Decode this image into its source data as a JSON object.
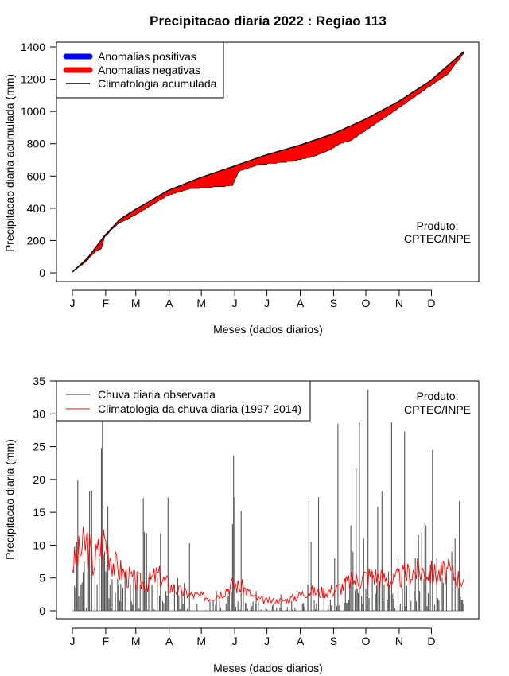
{
  "title": "Precipitacao diaria 2022 : Regiao 113",
  "colors": {
    "positive": "#0000ff",
    "negative": "#ff0000",
    "climatology": "#000000",
    "observed": "#555555",
    "clim_daily": "#ff0000"
  },
  "chart_data": [
    {
      "type": "area",
      "title": "Precipitacao diaria 2022 : Regiao 113",
      "xlabel": "Meses (dados diarios)",
      "ylabel": "Precipitacao diaria acumulada (mm)",
      "xlim": [
        1,
        365
      ],
      "ylim": [
        0,
        1400
      ],
      "yticks": [
        0,
        200,
        400,
        600,
        800,
        1000,
        1200,
        1400
      ],
      "month_ticks": [
        "J",
        "F",
        "M",
        "A",
        "M",
        "J",
        "J",
        "A",
        "S",
        "O",
        "N",
        "D"
      ],
      "legend": [
        "Anomalias positivas",
        "Anomalias negativas",
        "Climatologia acumulada"
      ],
      "annotation": [
        "Produto:",
        "CPTEC/INPE"
      ],
      "climatology_keypoints": [
        [
          1,
          5
        ],
        [
          15,
          90
        ],
        [
          31,
          230
        ],
        [
          45,
          330
        ],
        [
          59,
          390
        ],
        [
          90,
          510
        ],
        [
          120,
          590
        ],
        [
          151,
          660
        ],
        [
          181,
          730
        ],
        [
          212,
          790
        ],
        [
          243,
          860
        ],
        [
          273,
          950
        ],
        [
          304,
          1060
        ],
        [
          334,
          1190
        ],
        [
          365,
          1370
        ]
      ],
      "observed_keypoints": [
        [
          1,
          5
        ],
        [
          12,
          60
        ],
        [
          18,
          100
        ],
        [
          22,
          130
        ],
        [
          28,
          150
        ],
        [
          31,
          220
        ],
        [
          38,
          270
        ],
        [
          45,
          310
        ],
        [
          59,
          355
        ],
        [
          75,
          420
        ],
        [
          90,
          480
        ],
        [
          110,
          520
        ],
        [
          150,
          540
        ],
        [
          156,
          630
        ],
        [
          175,
          670
        ],
        [
          205,
          690
        ],
        [
          225,
          720
        ],
        [
          240,
          760
        ],
        [
          250,
          800
        ],
        [
          260,
          820
        ],
        [
          300,
          1000
        ],
        [
          330,
          1140
        ],
        [
          350,
          1230
        ],
        [
          365,
          1360
        ]
      ]
    },
    {
      "type": "bar",
      "xlabel": "Meses (dados diarios)",
      "ylabel": "Precipitacao diaria (mm)",
      "xlim": [
        1,
        365
      ],
      "ylim": [
        0,
        35
      ],
      "yticks": [
        0,
        5,
        10,
        15,
        20,
        25,
        30,
        35
      ],
      "month_ticks": [
        "J",
        "F",
        "M",
        "A",
        "M",
        "J",
        "J",
        "A",
        "S",
        "O",
        "N",
        "D"
      ],
      "legend": [
        "Chuva diaria observada",
        "Climatologia da chuva diaria (1997-2014)"
      ],
      "annotation": [
        "Produto:",
        "CPTEC/INPE"
      ],
      "observed_peaks": [
        [
          3,
          3.8
        ],
        [
          5,
          10.5
        ],
        [
          6,
          19.9
        ],
        [
          9,
          4
        ],
        [
          12,
          7.5
        ],
        [
          16,
          8
        ],
        [
          17,
          18.2
        ],
        [
          19,
          18.3
        ],
        [
          22,
          6
        ],
        [
          24,
          4
        ],
        [
          26,
          8
        ],
        [
          28,
          24.8
        ],
        [
          29,
          35
        ],
        [
          31,
          9
        ],
        [
          32,
          6
        ],
        [
          34,
          15.9
        ],
        [
          36,
          4
        ],
        [
          44,
          4
        ],
        [
          48,
          3.5
        ],
        [
          50,
          6
        ],
        [
          55,
          4
        ],
        [
          58,
          5
        ],
        [
          61,
          6
        ],
        [
          64,
          4
        ],
        [
          67,
          17.2
        ],
        [
          68,
          12
        ],
        [
          70,
          11.8
        ],
        [
          72,
          5
        ],
        [
          75,
          4
        ],
        [
          80,
          5
        ],
        [
          83,
          11.8
        ],
        [
          88,
          3
        ],
        [
          90,
          17.3
        ],
        [
          96,
          4
        ],
        [
          99,
          5
        ],
        [
          103,
          3
        ],
        [
          105,
          4.2
        ],
        [
          110,
          10.3
        ],
        [
          135,
          3
        ],
        [
          150,
          13.2
        ],
        [
          151,
          23.6
        ],
        [
          152,
          17.3
        ],
        [
          158,
          15.2
        ],
        [
          160,
          4
        ],
        [
          172,
          3
        ],
        [
          195,
          2.5
        ],
        [
          210,
          3
        ],
        [
          220,
          4
        ],
        [
          221,
          17.2
        ],
        [
          223,
          10.5
        ],
        [
          230,
          17.3
        ],
        [
          235,
          3.5
        ],
        [
          245,
          8
        ],
        [
          248,
          28.5
        ],
        [
          255,
          5
        ],
        [
          260,
          13
        ],
        [
          262,
          9
        ],
        [
          265,
          21.7
        ],
        [
          268,
          28.7
        ],
        [
          272,
          11
        ],
        [
          276,
          33.7
        ],
        [
          280,
          6
        ],
        [
          285,
          15.8
        ],
        [
          289,
          18.2
        ],
        [
          295,
          6
        ],
        [
          298,
          28.7
        ],
        [
          304,
          8
        ],
        [
          310,
          27.3
        ],
        [
          315,
          6
        ],
        [
          320,
          8
        ],
        [
          323,
          11.5
        ],
        [
          326,
          12
        ],
        [
          329,
          13.5
        ],
        [
          330,
          13
        ],
        [
          334,
          7
        ],
        [
          336,
          24.5
        ],
        [
          340,
          8
        ],
        [
          345,
          5
        ],
        [
          349,
          6
        ],
        [
          354,
          9
        ],
        [
          357,
          11
        ],
        [
          361,
          16.7
        ]
      ],
      "climatology_keypoints": [
        [
          1,
          7
        ],
        [
          5,
          8
        ],
        [
          10,
          9.5
        ],
        [
          15,
          10.5
        ],
        [
          20,
          7
        ],
        [
          25,
          9
        ],
        [
          31,
          11
        ],
        [
          40,
          7
        ],
        [
          50,
          5.5
        ],
        [
          60,
          4.5
        ],
        [
          70,
          4.2
        ],
        [
          80,
          5.5
        ],
        [
          90,
          4
        ],
        [
          100,
          3
        ],
        [
          110,
          2.5
        ],
        [
          120,
          2.2
        ],
        [
          130,
          2
        ],
        [
          140,
          2.8
        ],
        [
          150,
          4
        ],
        [
          160,
          3.5
        ],
        [
          170,
          2
        ],
        [
          180,
          1.5
        ],
        [
          190,
          1.5
        ],
        [
          200,
          1.6
        ],
        [
          210,
          2.2
        ],
        [
          220,
          3
        ],
        [
          230,
          2.8
        ],
        [
          240,
          3
        ],
        [
          250,
          3.5
        ],
        [
          260,
          4.5
        ],
        [
          270,
          5
        ],
        [
          280,
          5.5
        ],
        [
          290,
          5
        ],
        [
          300,
          4.5
        ],
        [
          310,
          5.5
        ],
        [
          320,
          6
        ],
        [
          330,
          6
        ],
        [
          340,
          5.5
        ],
        [
          350,
          6
        ],
        [
          360,
          5
        ],
        [
          365,
          5
        ]
      ]
    }
  ]
}
